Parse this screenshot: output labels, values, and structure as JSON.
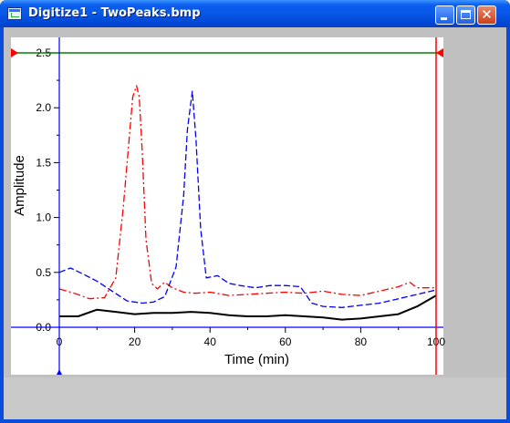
{
  "window": {
    "title": "Digitize1 - TwoPeaks.bmp",
    "icon": "origin-graph-icon",
    "buttons": {
      "minimize": "minimize-icon",
      "maximize": "maximize-icon",
      "close": "close-icon"
    },
    "close_glyph": "✕"
  },
  "chart_data": {
    "type": "line",
    "title": "",
    "xlabel": "Time (min)",
    "ylabel": "Amplitude",
    "xlim": [
      0,
      100
    ],
    "ylim": [
      0,
      2.5
    ],
    "xticks": [
      "0",
      "20",
      "40",
      "60",
      "80",
      "100"
    ],
    "yticks": [
      "0.0",
      "0.5",
      "1.0",
      "1.5",
      "2.0",
      "2.5"
    ],
    "grid": false,
    "legend": "none",
    "series": [
      {
        "color": "#ff0000",
        "style": "dashdot",
        "x": [
          0,
          4,
          8,
          12,
          15,
          17,
          18.5,
          19.5,
          20.5,
          21.2,
          22,
          23,
          24.5,
          26,
          28,
          30,
          33,
          36,
          40,
          45,
          50,
          55,
          60,
          65,
          70,
          75,
          80,
          85,
          90,
          93,
          95,
          100
        ],
        "y": [
          0.35,
          0.31,
          0.26,
          0.27,
          0.45,
          1.1,
          1.7,
          2.1,
          2.2,
          2.1,
          1.6,
          0.8,
          0.4,
          0.35,
          0.41,
          0.36,
          0.32,
          0.31,
          0.32,
          0.29,
          0.3,
          0.31,
          0.32,
          0.31,
          0.33,
          0.3,
          0.29,
          0.33,
          0.37,
          0.41,
          0.36,
          0.36
        ]
      },
      {
        "color": "#0000ff",
        "style": "dashed",
        "x": [
          0,
          3,
          6,
          10,
          14,
          18,
          22,
          25,
          28,
          31,
          33,
          34,
          35.3,
          36.3,
          37.5,
          39,
          42,
          45,
          48,
          52,
          56,
          60,
          64,
          67,
          70,
          75,
          80,
          85,
          90,
          95,
          100
        ],
        "y": [
          0.5,
          0.54,
          0.49,
          0.42,
          0.33,
          0.24,
          0.22,
          0.23,
          0.28,
          0.55,
          1.2,
          1.8,
          2.15,
          1.7,
          0.9,
          0.45,
          0.47,
          0.4,
          0.38,
          0.36,
          0.38,
          0.38,
          0.37,
          0.22,
          0.19,
          0.18,
          0.2,
          0.22,
          0.26,
          0.3,
          0.34
        ]
      },
      {
        "color": "#000000",
        "style": "solid",
        "x": [
          0,
          5,
          10,
          15,
          20,
          25,
          30,
          35,
          40,
          45,
          50,
          55,
          60,
          65,
          70,
          75,
          80,
          85,
          90,
          95,
          100
        ],
        "y": [
          0.1,
          0.1,
          0.16,
          0.14,
          0.12,
          0.13,
          0.13,
          0.14,
          0.13,
          0.11,
          0.1,
          0.1,
          0.11,
          0.1,
          0.09,
          0.07,
          0.08,
          0.1,
          0.12,
          0.19,
          0.29
        ]
      }
    ]
  },
  "digitizer": {
    "x_reference_lines": [
      0,
      100
    ],
    "y_reference_lines": [
      0,
      2.5
    ],
    "x_line_color": "#0000ff",
    "x2_line_color": "#ff0000",
    "y_line_color": "#0000ff",
    "y2_line_color": "#008000"
  }
}
